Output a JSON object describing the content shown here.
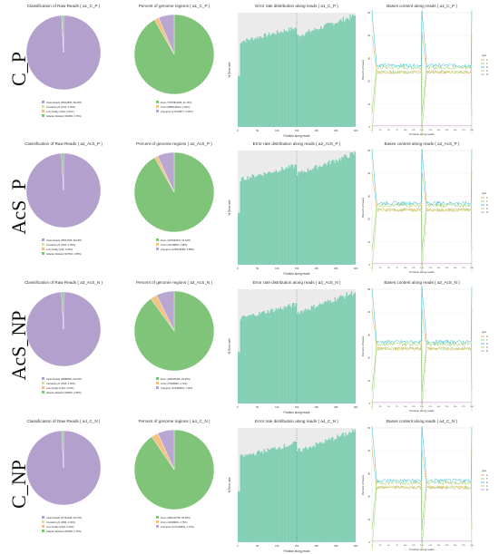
{
  "rows": [
    {
      "label": "C_P",
      "raw": {
        "title": "Classification of Raw Reads ( a1_C_P )",
        "legend": [
          "Clean Reads (38421856, 98.22%)",
          "Containing N (1412, 0.00%)",
          "Low Quality (3242, 0.01%)",
          "Adapter Related (323256, 0.76%)"
        ]
      },
      "genome": {
        "title": "Percent of genome regions ( a1_C_P )",
        "legend": [
          "Exon (77875824286, 91.16%)",
          "Intron (8885136614, 1.82%)",
          "Intergenic (174449877, 6.36%)"
        ]
      },
      "error": {
        "title": "Error rate distribution along reads ( a1_C_P )",
        "xlabel": "Position along reads",
        "ylabel": "% Error rate"
      },
      "bases": {
        "title": "Bases content along reads ( a1_C_P )",
        "xlabel": "Position along reads",
        "ylabel": "Percent of bases"
      }
    },
    {
      "label": "AcS_P",
      "raw": {
        "title": "Classification of Raw Reads ( a2_AcS_P )",
        "legend": [
          "Clean Reads (38601768, 98.18%)",
          "Containing N (1542, 0.00%)",
          "Low Quality (196, 0.00%)",
          "Adapter Related (347562, 0.88%)"
        ]
      },
      "genome": {
        "title": "Percent of genome regions ( a2_AcS_P )",
        "legend": [
          "Exon (1200292644, 92.62%)",
          "Intron (32148805, 1.38%)",
          "Intergenic (1256348286, 6.88%)"
        ]
      },
      "error": {
        "title": "Error rate distribution along reads ( a2_AcS_P )",
        "xlabel": "Position along reads",
        "ylabel": "% Error rate"
      },
      "bases": {
        "title": "Bases content along reads ( a2_AcS_P )",
        "xlabel": "Position along reads",
        "ylabel": "Percent of bases"
      }
    },
    {
      "label": "AcS_NP",
      "raw": {
        "title": "Classification of Raw Reads ( a3_AcS_N )",
        "legend": [
          "Clean Reads (39988352, 99.15%)",
          "Containing N (1545, 0.00%)",
          "Low Quality (1491, 0.00%)",
          "Adapter Related (348662, 0.88%)"
        ]
      },
      "genome": {
        "title": "Percent of genome regions ( a3_AcS_N )",
        "legend": [
          "Exon (1186468196, 90.65%)",
          "Intron (37848566, 2.71%)",
          "Intergenic (112484804, 7.32%)"
        ]
      },
      "error": {
        "title": "Error rate distribution along reads ( a3_AcS_N )",
        "xlabel": "Position along reads",
        "ylabel": "% Error rate"
      },
      "bases": {
        "title": "Bases content along reads ( a3_AcS_N )",
        "xlabel": "Position along reads",
        "ylabel": "Percent of bases"
      }
    },
    {
      "label": "C_NP",
      "raw": {
        "title": "Classification of Raw Reads ( a4_C_N )",
        "legend": [
          "Clean Reads (37742168, 99.27%)",
          "Containing N (1584, 0.00%)",
          "Low Quality (1526, 0.00%)",
          "Adapter Related (303666, 0.76%)"
        ]
      },
      "genome": {
        "title": "Percent of genome regions ( a4_C_N )",
        "legend": [
          "Exon (1082116758, 90.48%)",
          "Intron (44048820, 2.75%)",
          "Intergenic (1172199651, 6.76%)"
        ]
      },
      "error": {
        "title": "Error rate distribution along reads ( a4_C_N )",
        "xlabel": "Position along reads",
        "ylabel": "% Error rate"
      },
      "bases": {
        "title": "Bases content along reads ( a4_C_N )",
        "xlabel": "Position along reads",
        "ylabel": "Percent of bases"
      }
    }
  ],
  "colors": {
    "clean": "#b3a0cc",
    "containing_n": "#cfe4a0",
    "low_quality": "#f3c08a",
    "adapter": "#7fc47a",
    "exon": "#80c47a",
    "intron": "#f5c17d",
    "intergenic": "#b9a7d2",
    "error_bar": "#82cfb3",
    "base_a": "#e7a83c",
    "base_t": "#8bc34a",
    "base_g": "#1eb9c8",
    "base_c": "#a0d070",
    "base_n": "#d07fd6"
  },
  "chart_data": [
    {
      "type": "pie",
      "title": "Classification of Raw Reads ( a1_C_P )",
      "labels": [
        "Clean Reads",
        "Containing N",
        "Low Quality",
        "Adapter Related"
      ],
      "values": [
        98.22,
        0.0,
        0.01,
        0.76
      ]
    },
    {
      "type": "pie",
      "title": "Percent of genome regions ( a1_C_P )",
      "labels": [
        "Exon",
        "Intron",
        "Intergenic"
      ],
      "values": [
        91.16,
        1.82,
        6.36
      ]
    },
    {
      "type": "pie",
      "title": "Classification of Raw Reads ( a2_AcS_P )",
      "labels": [
        "Clean Reads",
        "Containing N",
        "Low Quality",
        "Adapter Related"
      ],
      "values": [
        98.18,
        0.0,
        0.0,
        0.88
      ]
    },
    {
      "type": "pie",
      "title": "Percent of genome regions ( a2_AcS_P )",
      "labels": [
        "Exon",
        "Intron",
        "Intergenic"
      ],
      "values": [
        92.62,
        1.38,
        6.88
      ]
    },
    {
      "type": "pie",
      "title": "Classification of Raw Reads ( a3_AcS_N )",
      "labels": [
        "Clean Reads",
        "Containing N",
        "Low Quality",
        "Adapter Related"
      ],
      "values": [
        99.15,
        0.0,
        0.0,
        0.88
      ]
    },
    {
      "type": "pie",
      "title": "Percent of genome regions ( a3_AcS_N )",
      "labels": [
        "Exon",
        "Intron",
        "Intergenic"
      ],
      "values": [
        90.65,
        2.71,
        7.32
      ]
    },
    {
      "type": "pie",
      "title": "Classification of Raw Reads ( a4_C_N )",
      "labels": [
        "Clean Reads",
        "Containing N",
        "Low Quality",
        "Adapter Related"
      ],
      "values": [
        99.27,
        0.0,
        0.0,
        0.76
      ]
    },
    {
      "type": "pie",
      "title": "Percent of genome regions ( a4_C_N )",
      "labels": [
        "Exon",
        "Intron",
        "Intergenic"
      ],
      "values": [
        90.48,
        2.75,
        6.76
      ]
    },
    {
      "type": "bar",
      "title": "Error rate distribution along reads",
      "xlabel": "Position along reads",
      "ylabel": "% Error rate",
      "x_range": [
        0,
        300
      ],
      "divider_at": 150,
      "xticks": [
        "0",
        "50",
        "100",
        "150",
        "200",
        "250",
        "300"
      ],
      "yticks": [
        "0.00",
        "0.01",
        "0.02",
        "0.03",
        "0.04",
        "0.05"
      ],
      "ylim": [
        0,
        0.055
      ],
      "trend": [
        [
          0,
          0.041
        ],
        [
          150,
          0.048
        ],
        [
          151,
          0.044
        ],
        [
          300,
          0.054
        ]
      ]
    },
    {
      "type": "line",
      "title": "Bases content along reads",
      "xlabel": "Position along reads",
      "ylabel": "Percent of bases",
      "x_range": [
        0,
        300
      ],
      "divider_at": 150,
      "ylim": [
        0,
        50
      ],
      "xticks": [
        "0",
        "25",
        "50",
        "75",
        "100",
        "125",
        "150",
        "175",
        "200",
        "225",
        "250",
        "275",
        "300"
      ],
      "yticks": [
        "0",
        "10",
        "20",
        "30",
        "40",
        "50"
      ],
      "legend_title": "type",
      "series_names": [
        "A",
        "T",
        "G",
        "C",
        "N"
      ],
      "levels": {
        "A": 24,
        "T": 26,
        "G": 27,
        "C": 24,
        "N": 0.5
      }
    }
  ]
}
